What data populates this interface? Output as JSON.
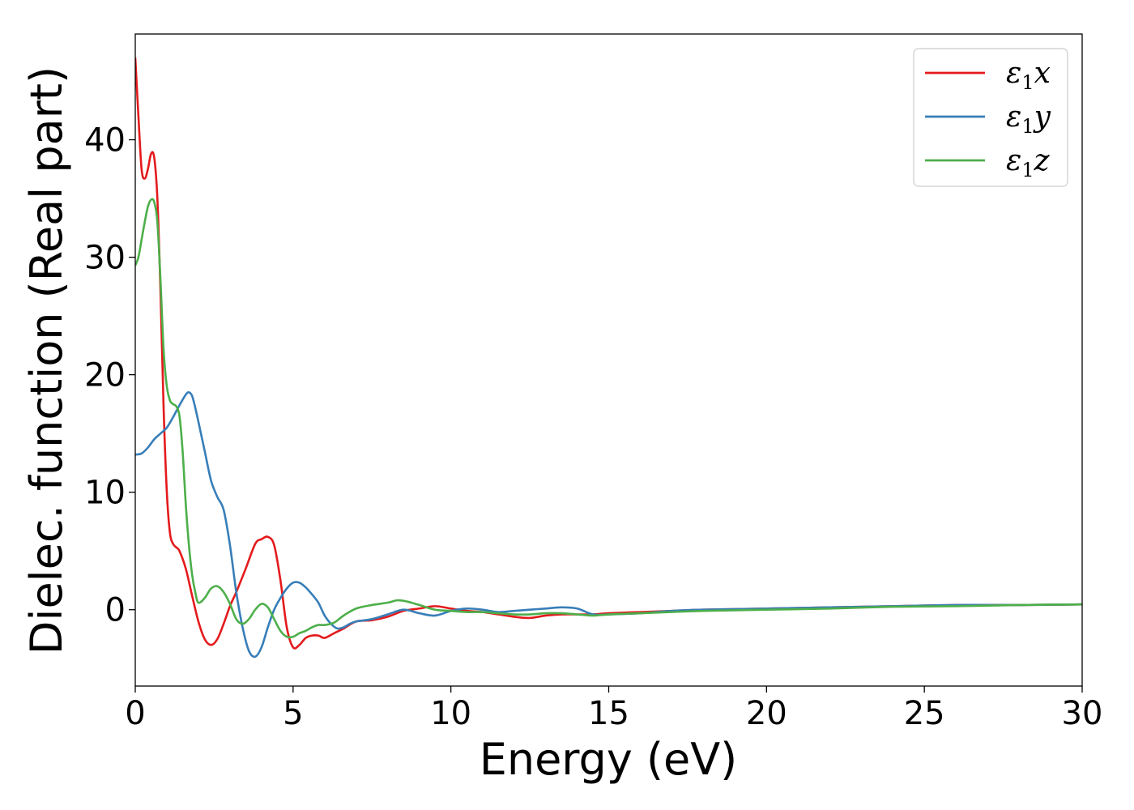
{
  "chart_data": {
    "type": "line",
    "xlabel": "Energy (eV)",
    "ylabel": "Dielec. function (Real part)",
    "xlim": [
      0,
      30
    ],
    "ylim": [
      -6.5,
      49
    ],
    "xticks": [
      0,
      5,
      10,
      15,
      20,
      25,
      30
    ],
    "yticks": [
      0,
      10,
      20,
      30,
      40
    ],
    "grid": false,
    "legend_position": "top-right",
    "series": [
      {
        "name": "ε1x",
        "legend_base": "ε",
        "legend_sub": "1",
        "legend_suffix": "x",
        "color": "#e41a1c",
        "x": [
          0,
          0.1,
          0.2,
          0.3,
          0.4,
          0.5,
          0.6,
          0.7,
          0.8,
          0.9,
          1.0,
          1.1,
          1.2,
          1.3,
          1.4,
          1.6,
          1.8,
          2.0,
          2.2,
          2.4,
          2.6,
          2.8,
          3.0,
          3.2,
          3.5,
          3.8,
          4.0,
          4.2,
          4.4,
          4.6,
          4.8,
          5.0,
          5.2,
          5.4,
          5.6,
          5.8,
          6.0,
          6.3,
          6.6,
          7.0,
          7.5,
          8.0,
          8.5,
          9.0,
          9.5,
          10.0,
          10.5,
          11.0,
          11.5,
          12.0,
          12.5,
          13.0,
          13.5,
          14.0,
          14.5,
          15.0,
          16.0,
          17.0,
          18.0,
          20.0,
          22.0,
          24.0,
          26.0,
          28.0,
          30.0
        ],
        "y": [
          47,
          42,
          37.5,
          36.7,
          37.5,
          38.8,
          38.5,
          35,
          27,
          17,
          10,
          6.5,
          5.6,
          5.3,
          5.0,
          3.5,
          1.2,
          -1.0,
          -2.5,
          -3.0,
          -2.5,
          -1.2,
          0.3,
          1.5,
          3.5,
          5.6,
          6.0,
          6.2,
          5.5,
          2.5,
          -1.5,
          -3.2,
          -3.0,
          -2.4,
          -2.2,
          -2.2,
          -2.4,
          -2.0,
          -1.6,
          -1.0,
          -0.9,
          -0.6,
          -0.1,
          0.1,
          0.3,
          0.1,
          -0.1,
          -0.2,
          -0.4,
          -0.6,
          -0.7,
          -0.5,
          -0.4,
          -0.4,
          -0.4,
          -0.3,
          -0.2,
          -0.1,
          0.0,
          0.1,
          0.2,
          0.3,
          0.4,
          0.4,
          0.45
        ]
      },
      {
        "name": "ε1y",
        "legend_base": "ε",
        "legend_sub": "1",
        "legend_suffix": "y",
        "color": "#377eb8",
        "x": [
          0,
          0.2,
          0.4,
          0.6,
          0.8,
          1.0,
          1.2,
          1.4,
          1.6,
          1.7,
          1.8,
          1.9,
          2.0,
          2.2,
          2.4,
          2.6,
          2.8,
          3.0,
          3.2,
          3.4,
          3.6,
          3.8,
          4.0,
          4.2,
          4.4,
          4.6,
          4.8,
          5.0,
          5.2,
          5.4,
          5.6,
          5.8,
          6.0,
          6.2,
          6.4,
          6.6,
          6.8,
          7.0,
          7.5,
          8.0,
          8.5,
          9.0,
          9.5,
          10.0,
          10.5,
          11.0,
          11.5,
          12.0,
          12.5,
          13.0,
          13.5,
          14.0,
          14.5,
          15.0,
          16.0,
          17.0,
          18.0,
          20.0,
          22.0,
          24.0,
          26.0,
          28.0,
          30.0
        ],
        "y": [
          13.2,
          13.3,
          13.8,
          14.5,
          15.0,
          15.5,
          16.4,
          17.4,
          18.3,
          18.5,
          18.2,
          17.2,
          16.0,
          13.5,
          11.0,
          9.6,
          8.5,
          5.5,
          1.5,
          -1.5,
          -3.5,
          -4.0,
          -3.2,
          -1.5,
          0.0,
          1.0,
          1.8,
          2.3,
          2.3,
          1.9,
          1.3,
          0.6,
          -0.5,
          -1.2,
          -1.6,
          -1.5,
          -1.2,
          -1.0,
          -0.8,
          -0.4,
          0.0,
          -0.3,
          -0.5,
          -0.1,
          0.1,
          0.0,
          -0.2,
          -0.1,
          0.0,
          0.1,
          0.2,
          0.1,
          -0.4,
          -0.4,
          -0.3,
          -0.1,
          0.0,
          0.1,
          0.2,
          0.3,
          0.4,
          0.4,
          0.45
        ]
      },
      {
        "name": "ε1z",
        "legend_base": "ε",
        "legend_sub": "1",
        "legend_suffix": "z",
        "color": "#4daf4a",
        "x": [
          0,
          0.1,
          0.2,
          0.3,
          0.4,
          0.5,
          0.6,
          0.7,
          0.8,
          0.9,
          1.0,
          1.1,
          1.2,
          1.3,
          1.4,
          1.5,
          1.6,
          1.7,
          1.8,
          1.9,
          2.0,
          2.2,
          2.4,
          2.6,
          2.8,
          3.0,
          3.2,
          3.4,
          3.6,
          3.8,
          4.0,
          4.2,
          4.4,
          4.6,
          4.8,
          5.0,
          5.2,
          5.4,
          5.6,
          5.8,
          6.0,
          6.3,
          6.6,
          7.0,
          7.5,
          8.0,
          8.3,
          8.6,
          9.0,
          9.5,
          10.0,
          10.5,
          11.0,
          11.5,
          12.0,
          12.5,
          13.0,
          13.5,
          14.0,
          14.5,
          15.0,
          16.0,
          17.0,
          18.0,
          20.0,
          22.0,
          24.0,
          26.0,
          28.0,
          30.0
        ],
        "y": [
          29.3,
          30.0,
          31.5,
          33.0,
          34.3,
          34.9,
          34.7,
          33.0,
          28.0,
          22.0,
          19.0,
          17.8,
          17.5,
          17.3,
          16.5,
          13.5,
          9.0,
          5.5,
          3.0,
          1.5,
          0.6,
          1.0,
          1.8,
          2.0,
          1.5,
          0.5,
          -0.8,
          -1.2,
          -0.8,
          0.0,
          0.5,
          0.2,
          -0.8,
          -1.8,
          -2.3,
          -2.3,
          -2.0,
          -1.8,
          -1.5,
          -1.3,
          -1.3,
          -1.1,
          -0.5,
          0.1,
          0.4,
          0.6,
          0.8,
          0.7,
          0.4,
          0.0,
          -0.1,
          -0.2,
          -0.2,
          -0.3,
          -0.4,
          -0.4,
          -0.3,
          -0.3,
          -0.4,
          -0.5,
          -0.4,
          -0.3,
          -0.2,
          -0.1,
          0.0,
          0.1,
          0.25,
          0.3,
          0.4,
          0.45
        ]
      }
    ]
  }
}
